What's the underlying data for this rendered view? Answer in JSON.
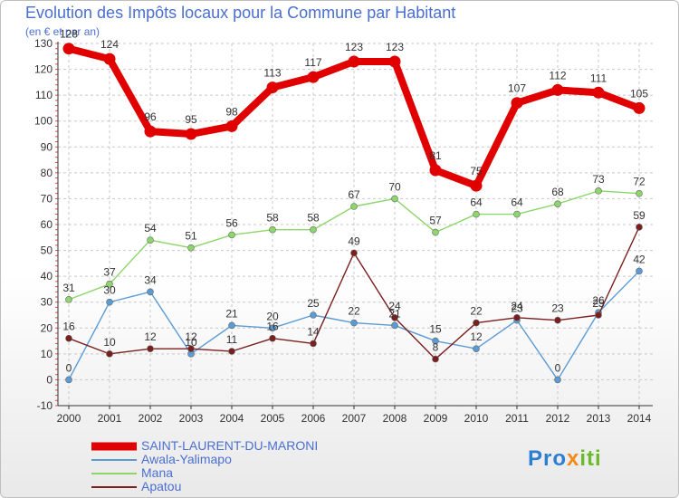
{
  "header": {
    "title": "Evolution des Impôts locaux pour la Commune par Habitant",
    "subtitle": "(en € et par an)"
  },
  "chart_data": {
    "type": "line",
    "x": [
      "2000",
      "2001",
      "2002",
      "2003",
      "2004",
      "2005",
      "2006",
      "2007",
      "2008",
      "2009",
      "2010",
      "2011",
      "2012",
      "2013",
      "2014"
    ],
    "ylim": [
      -10,
      130
    ],
    "yticks": [
      "-10",
      "0",
      "10",
      "20",
      "30",
      "40",
      "50",
      "60",
      "70",
      "80",
      "90",
      "100",
      "110",
      "120",
      "130"
    ],
    "grid": true,
    "legend_position": "bottom-left",
    "series": [
      {
        "name": "SAINT-LAURENT-DU-MARONI",
        "color": "#e00000",
        "values": [
          128,
          124,
          96,
          95,
          98,
          113,
          117,
          123,
          123,
          81,
          75,
          107,
          112,
          111,
          105
        ]
      },
      {
        "name": "Awala-Yalimapo",
        "color": "#5b9bd5",
        "values": [
          0,
          30,
          34,
          10,
          21,
          20,
          25,
          22,
          21,
          15,
          12,
          23,
          0,
          26,
          42
        ]
      },
      {
        "name": "Mana",
        "color": "#8cd66b",
        "values": [
          31,
          37,
          54,
          51,
          56,
          58,
          58,
          67,
          70,
          57,
          64,
          64,
          68,
          73,
          72
        ]
      },
      {
        "name": "Apatou",
        "color": "#7a1e1e",
        "values": [
          16,
          10,
          12,
          12,
          11,
          16,
          14,
          49,
          24,
          8,
          22,
          24,
          23,
          25,
          59
        ]
      }
    ]
  },
  "logo": {
    "text": "Proxiti"
  }
}
